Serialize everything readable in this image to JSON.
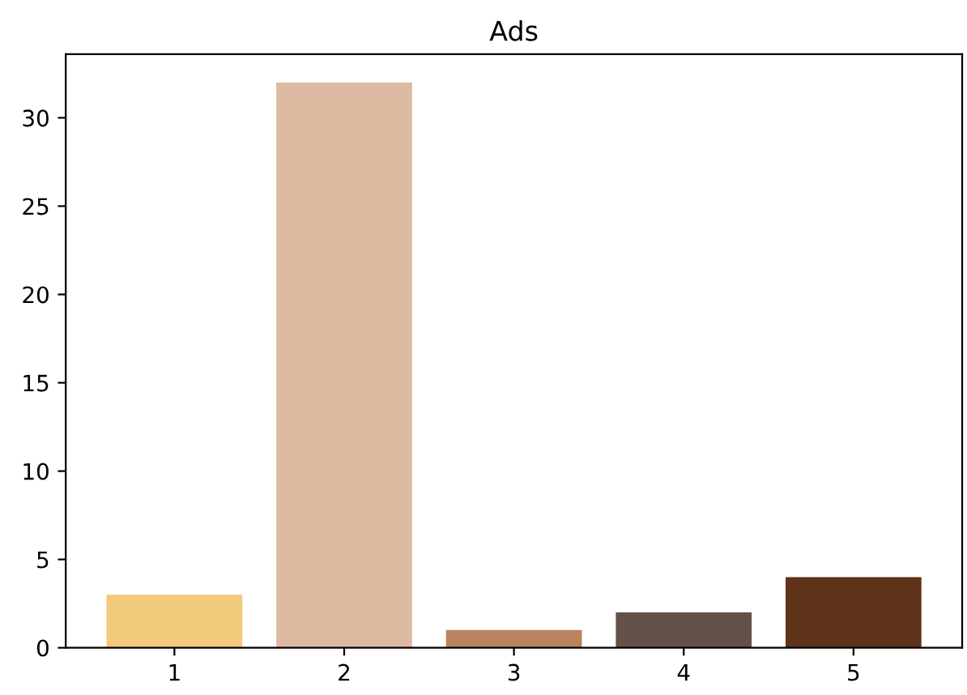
{
  "chart_data": {
    "type": "bar",
    "title": "Ads",
    "categories": [
      "1",
      "2",
      "3",
      "4",
      "5"
    ],
    "values": [
      3,
      32,
      1,
      2,
      4
    ],
    "colors": [
      "#f3ca7a",
      "#dfbaa2",
      "#b98360",
      "#645248",
      "#5f3319"
    ],
    "ylim": [
      0,
      33.6
    ],
    "yticks": [
      0,
      5,
      10,
      15,
      20,
      25,
      30
    ],
    "grid": false
  }
}
